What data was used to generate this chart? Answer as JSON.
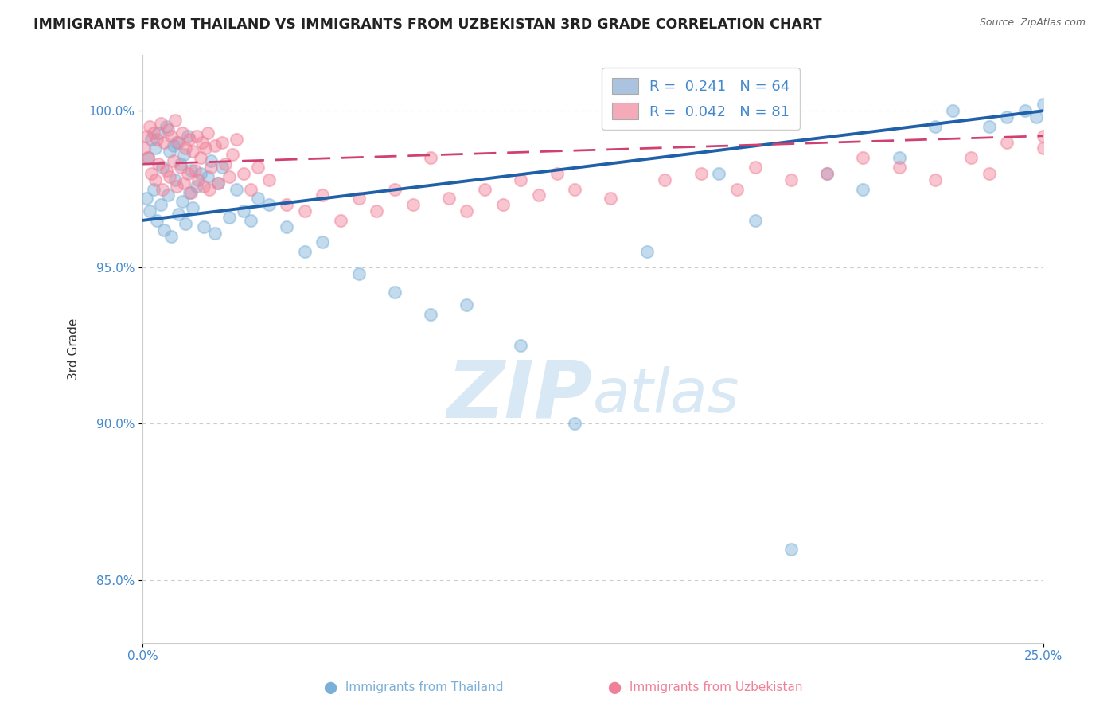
{
  "title": "IMMIGRANTS FROM THAILAND VS IMMIGRANTS FROM UZBEKISTAN 3RD GRADE CORRELATION CHART",
  "source_text": "Source: ZipAtlas.com",
  "ylabel": "3rd Grade",
  "xlim": [
    0.0,
    25.0
  ],
  "ylim": [
    83.0,
    101.8
  ],
  "yticks": [
    85.0,
    90.0,
    95.0,
    100.0
  ],
  "ytick_labels": [
    "85.0%",
    "90.0%",
    "95.0%",
    "100.0%"
  ],
  "legend_color1": "#aac4e0",
  "legend_color2": "#f4aab8",
  "scatter_color1": "#7ab0d8",
  "scatter_color2": "#f08098",
  "line_color1": "#2060a8",
  "line_color2": "#d04070",
  "watermark_color": "#d8e8f4",
  "background_color": "#ffffff",
  "tick_label_color": "#4488cc",
  "title_fontsize": 12.5,
  "scatter_size": 120,
  "scatter_alpha": 0.45,
  "thailand_x": [
    0.1,
    0.15,
    0.2,
    0.25,
    0.3,
    0.35,
    0.4,
    0.45,
    0.5,
    0.55,
    0.6,
    0.65,
    0.7,
    0.75,
    0.8,
    0.85,
    0.9,
    0.95,
    1.0,
    1.05,
    1.1,
    1.15,
    1.2,
    1.25,
    1.3,
    1.35,
    1.4,
    1.5,
    1.6,
    1.7,
    1.8,
    1.9,
    2.0,
    2.1,
    2.2,
    2.4,
    2.6,
    2.8,
    3.0,
    3.2,
    3.5,
    4.0,
    4.5,
    5.0,
    6.0,
    7.0,
    8.0,
    9.0,
    10.5,
    12.0,
    14.0,
    16.0,
    17.0,
    18.0,
    20.0,
    22.0,
    24.0,
    24.5,
    25.0,
    24.8,
    23.5,
    22.5,
    21.0,
    19.0
  ],
  "thailand_y": [
    97.2,
    98.5,
    96.8,
    99.1,
    97.5,
    98.8,
    96.5,
    99.3,
    97.0,
    98.2,
    96.2,
    99.5,
    97.3,
    98.7,
    96.0,
    98.9,
    97.8,
    99.0,
    96.7,
    98.3,
    97.1,
    98.6,
    96.4,
    99.2,
    97.4,
    98.1,
    96.9,
    97.6,
    98.0,
    96.3,
    97.9,
    98.4,
    96.1,
    97.7,
    98.2,
    96.6,
    97.5,
    96.8,
    96.5,
    97.2,
    97.0,
    96.3,
    95.5,
    95.8,
    94.8,
    94.2,
    93.5,
    93.8,
    92.5,
    90.0,
    95.5,
    98.0,
    96.5,
    86.0,
    97.5,
    99.5,
    99.8,
    100.0,
    100.2,
    99.8,
    99.5,
    100.0,
    98.5,
    98.0
  ],
  "uzbekistan_x": [
    0.05,
    0.1,
    0.15,
    0.2,
    0.25,
    0.3,
    0.35,
    0.4,
    0.45,
    0.5,
    0.55,
    0.6,
    0.65,
    0.7,
    0.75,
    0.8,
    0.85,
    0.9,
    0.95,
    1.0,
    1.05,
    1.1,
    1.15,
    1.2,
    1.25,
    1.3,
    1.35,
    1.4,
    1.45,
    1.5,
    1.55,
    1.6,
    1.65,
    1.7,
    1.75,
    1.8,
    1.85,
    1.9,
    2.0,
    2.1,
    2.2,
    2.3,
    2.4,
    2.5,
    2.6,
    2.8,
    3.0,
    3.2,
    3.5,
    4.0,
    4.5,
    5.0,
    5.5,
    6.0,
    6.5,
    7.0,
    7.5,
    8.0,
    8.5,
    9.0,
    9.5,
    10.0,
    10.5,
    11.0,
    11.5,
    12.0,
    13.0,
    14.5,
    15.5,
    16.5,
    17.0,
    18.0,
    19.0,
    20.0,
    21.0,
    22.0,
    23.0,
    23.5,
    24.0,
    25.0,
    25.0
  ],
  "uzbekistan_y": [
    98.8,
    99.2,
    98.5,
    99.5,
    98.0,
    99.3,
    97.8,
    99.1,
    98.3,
    99.6,
    97.5,
    99.0,
    98.1,
    99.4,
    97.9,
    99.2,
    98.4,
    99.7,
    97.6,
    99.0,
    98.2,
    99.3,
    97.7,
    98.8,
    98.0,
    99.1,
    97.4,
    98.7,
    98.1,
    99.2,
    97.8,
    98.5,
    99.0,
    97.6,
    98.8,
    99.3,
    97.5,
    98.2,
    98.9,
    97.7,
    99.0,
    98.3,
    97.9,
    98.6,
    99.1,
    98.0,
    97.5,
    98.2,
    97.8,
    97.0,
    96.8,
    97.3,
    96.5,
    97.2,
    96.8,
    97.5,
    97.0,
    98.5,
    97.2,
    96.8,
    97.5,
    97.0,
    97.8,
    97.3,
    98.0,
    97.5,
    97.2,
    97.8,
    98.0,
    97.5,
    98.2,
    97.8,
    98.0,
    98.5,
    98.2,
    97.8,
    98.5,
    98.0,
    99.0,
    98.8,
    99.2
  ]
}
